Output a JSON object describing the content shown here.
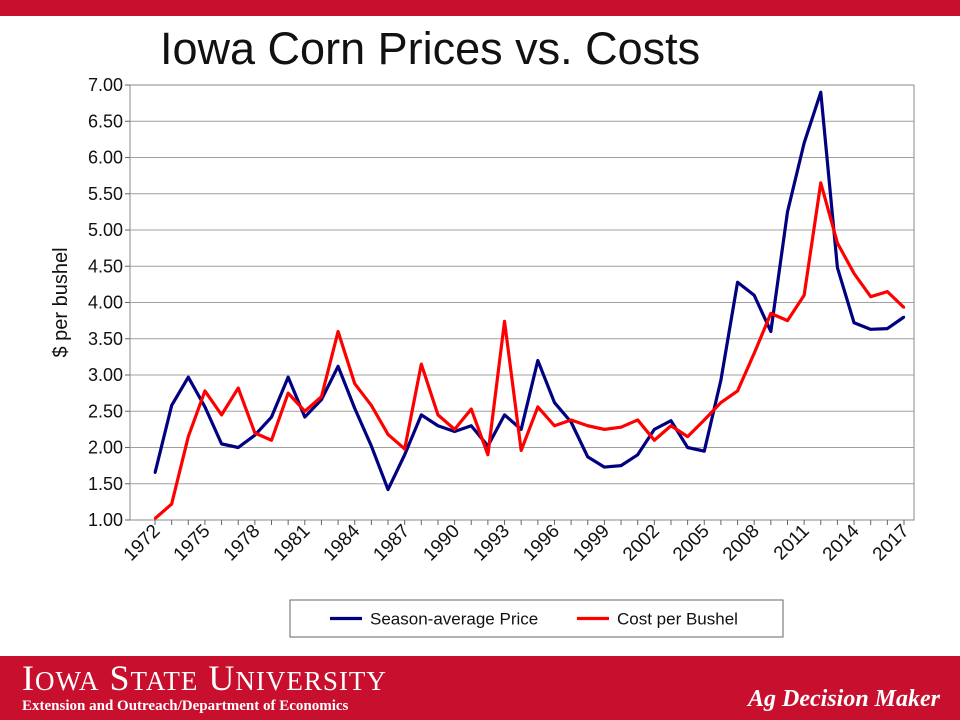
{
  "slide": {
    "title": "Iowa Corn Prices vs. Costs",
    "footer_university": "Iowa State University",
    "footer_department": "Extension and Outreach/Department  of Economics",
    "footer_brand": "Ag Decision Maker"
  },
  "colors": {
    "accent": "#c8102e",
    "price": "#000080",
    "cost": "#ff0000"
  },
  "chart_data": {
    "type": "line",
    "title": "",
    "xlabel": "",
    "ylabel": "$ per bushel",
    "ylim": [
      1.0,
      7.0
    ],
    "y_ticks": [
      "1.00",
      "1.50",
      "2.00",
      "2.50",
      "3.00",
      "3.50",
      "4.00",
      "4.50",
      "5.00",
      "5.50",
      "6.00",
      "6.50",
      "7.00"
    ],
    "x_tick_labels": [
      "1972",
      "1975",
      "1978",
      "1981",
      "1984",
      "1987",
      "1990",
      "1993",
      "1996",
      "1999",
      "2002",
      "2005",
      "2008",
      "2011",
      "2014",
      "2017"
    ],
    "grid": "horizontal",
    "legend_position": "bottom",
    "x": [
      1972,
      1973,
      1974,
      1975,
      1976,
      1977,
      1978,
      1979,
      1980,
      1981,
      1982,
      1983,
      1984,
      1985,
      1986,
      1987,
      1988,
      1989,
      1990,
      1991,
      1992,
      1993,
      1994,
      1995,
      1996,
      1997,
      1998,
      1999,
      2000,
      2001,
      2002,
      2003,
      2004,
      2005,
      2006,
      2007,
      2008,
      2009,
      2010,
      2011,
      2012,
      2013,
      2014,
      2015,
      2016,
      2017
    ],
    "series": [
      {
        "name": "Season-average Price",
        "color": "#000080",
        "values": [
          1.65,
          2.58,
          2.97,
          2.56,
          2.05,
          2.0,
          2.17,
          2.42,
          2.97,
          2.42,
          2.66,
          3.12,
          2.54,
          2.02,
          1.42,
          1.9,
          2.45,
          2.3,
          2.22,
          2.3,
          2.02,
          2.45,
          2.25,
          3.2,
          2.62,
          2.35,
          1.87,
          1.73,
          1.75,
          1.9,
          2.25,
          2.37,
          2.0,
          1.95,
          2.93,
          4.28,
          4.1,
          3.6,
          5.25,
          6.2,
          6.9,
          4.48,
          3.72,
          3.63,
          3.64,
          3.8
        ]
      },
      {
        "name": "Cost per Bushel",
        "color": "#ff0000",
        "values": [
          1.02,
          1.22,
          2.15,
          2.78,
          2.45,
          2.82,
          2.2,
          2.1,
          2.75,
          2.5,
          2.7,
          3.6,
          2.88,
          2.58,
          2.18,
          1.98,
          3.15,
          2.45,
          2.25,
          2.53,
          1.9,
          3.74,
          1.96,
          2.56,
          2.3,
          2.38,
          2.3,
          2.25,
          2.28,
          2.38,
          2.1,
          2.3,
          2.15,
          2.38,
          2.62,
          2.78,
          3.3,
          3.85,
          3.75,
          4.1,
          5.65,
          4.82,
          4.4,
          4.08,
          4.15,
          3.93
        ]
      }
    ]
  }
}
